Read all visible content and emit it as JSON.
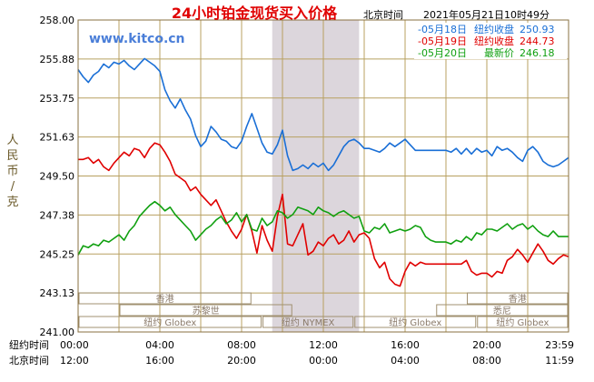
{
  "chart_data": {
    "type": "line",
    "title": "24小时铂金现货买入价格",
    "timestamp_prefix": "北京时间",
    "timestamp": "2021年05月21日10时49分",
    "watermark": "www.kitco.cn",
    "ylabel": "人民币/克",
    "ylim": [
      241.0,
      258.0
    ],
    "y_ticks": [
      "258.00",
      "255.88",
      "253.75",
      "251.63",
      "249.50",
      "247.38",
      "245.25",
      "243.13",
      "241.00"
    ],
    "x_range": [
      0,
      24
    ],
    "x_row_labels": [
      "纽约时间",
      "北京时间"
    ],
    "x_ticks_newyork": [
      "00:00",
      "04:00",
      "08:00",
      "12:00",
      "16:00",
      "20:00",
      "23:59"
    ],
    "x_ticks_beijing": [
      "12:00",
      "16:00",
      "20:00",
      "00:00",
      "04:00",
      "08:00",
      "11:59"
    ],
    "shaded_interval": [
      9.5,
      13.75
    ],
    "sessions": [
      {
        "name": "香港",
        "row": 0,
        "start": 0.0,
        "end": 8.5
      },
      {
        "name": "香港",
        "row": 0,
        "start": 19.0,
        "end": 24.0
      },
      {
        "name": "苏黎世",
        "row": 1,
        "start": 2.0,
        "end": 10.5
      },
      {
        "name": "悉尼",
        "row": 1,
        "start": 17.5,
        "end": 24.0
      },
      {
        "name": "纽约 Globex",
        "row": 2,
        "start": 0.0,
        "end": 9.0
      },
      {
        "name": "纽约 NYMEX",
        "row": 2,
        "start": 9.0,
        "end": 13.5
      },
      {
        "name": "纽约 Globex",
        "row": 2,
        "start": 13.5,
        "end": 19.5
      },
      {
        "name": "纽约 Globex",
        "row": 2,
        "start": 19.5,
        "end": 24.0
      }
    ],
    "legend_position": "top-right",
    "series": [
      {
        "name": "05月18日",
        "close_label": "纽约收盘",
        "close_value": "250.93",
        "color": "#1a6fd6",
        "x": [
          0.0,
          0.25,
          0.5,
          0.75,
          1.0,
          1.25,
          1.5,
          1.75,
          2.0,
          2.25,
          2.5,
          2.75,
          3.0,
          3.25,
          3.5,
          3.75,
          4.0,
          4.25,
          4.5,
          4.75,
          5.0,
          5.25,
          5.5,
          5.75,
          6.0,
          6.25,
          6.5,
          6.75,
          7.0,
          7.25,
          7.5,
          7.75,
          8.0,
          8.25,
          8.5,
          8.75,
          9.0,
          9.25,
          9.5,
          9.75,
          10.0,
          10.25,
          10.5,
          10.75,
          11.0,
          11.25,
          11.5,
          11.75,
          12.0,
          12.25,
          12.5,
          12.75,
          13.0,
          13.25,
          13.5,
          13.75,
          14.0,
          14.25,
          14.5,
          14.75,
          15.0,
          15.25,
          15.5,
          15.75,
          16.0,
          16.25,
          16.5,
          16.75,
          17.0,
          17.25,
          17.5,
          17.75,
          18.0,
          18.25,
          18.5,
          18.75,
          19.0,
          19.25,
          19.5,
          19.75,
          20.0,
          20.25,
          20.5,
          20.75,
          21.0,
          21.25,
          21.5,
          21.75,
          22.0,
          22.25,
          22.5,
          22.75,
          23.0,
          23.25,
          23.5,
          23.75,
          24.0
        ],
        "y": [
          255.3,
          254.9,
          254.6,
          255.0,
          255.2,
          255.6,
          255.4,
          255.7,
          255.6,
          255.8,
          255.5,
          255.3,
          255.6,
          255.9,
          255.7,
          255.5,
          255.2,
          254.2,
          253.6,
          253.2,
          253.7,
          253.1,
          252.6,
          251.7,
          251.1,
          251.4,
          252.2,
          251.9,
          251.5,
          251.4,
          251.1,
          251.0,
          251.4,
          252.2,
          252.9,
          252.1,
          251.3,
          250.8,
          250.7,
          251.2,
          252.0,
          250.6,
          249.8,
          249.9,
          250.1,
          249.9,
          250.2,
          250.0,
          250.2,
          249.8,
          250.1,
          250.6,
          251.1,
          251.4,
          251.5,
          251.3,
          251.0,
          251.0,
          250.9,
          250.8,
          251.0,
          251.3,
          251.1,
          251.3,
          251.5,
          251.2,
          250.9,
          250.9,
          250.9,
          250.9,
          250.9,
          250.9,
          250.9,
          250.8,
          251.0,
          250.7,
          251.0,
          250.7,
          251.0,
          250.8,
          250.9,
          250.6,
          251.1,
          250.9,
          251.0,
          250.8,
          250.5,
          250.3,
          250.9,
          251.1,
          250.8,
          250.3,
          250.1,
          250.0,
          250.1,
          250.3,
          250.5
        ]
      },
      {
        "name": "05月19日",
        "close_label": "纽约收盘",
        "close_value": "244.73",
        "color": "#e00000",
        "x": [
          0.0,
          0.25,
          0.5,
          0.75,
          1.0,
          1.25,
          1.5,
          1.75,
          2.0,
          2.25,
          2.5,
          2.75,
          3.0,
          3.25,
          3.5,
          3.75,
          4.0,
          4.25,
          4.5,
          4.75,
          5.0,
          5.25,
          5.5,
          5.75,
          6.0,
          6.25,
          6.5,
          6.75,
          7.0,
          7.25,
          7.5,
          7.75,
          8.0,
          8.25,
          8.5,
          8.75,
          9.0,
          9.25,
          9.5,
          9.75,
          10.0,
          10.25,
          10.5,
          10.75,
          11.0,
          11.25,
          11.5,
          11.75,
          12.0,
          12.25,
          12.5,
          12.75,
          13.0,
          13.25,
          13.5,
          13.75,
          14.0,
          14.25,
          14.5,
          14.75,
          15.0,
          15.25,
          15.5,
          15.75,
          16.0,
          16.25,
          16.5,
          16.75,
          17.0,
          17.25,
          17.5,
          17.75,
          18.0,
          18.25,
          18.5,
          18.75,
          19.0,
          19.25,
          19.5,
          19.75,
          20.0,
          20.25,
          20.5,
          20.75,
          21.0,
          21.25,
          21.5,
          21.75,
          22.0,
          22.25,
          22.5,
          22.75,
          23.0,
          23.25,
          23.5,
          23.75,
          24.0
        ],
        "y": [
          250.4,
          250.4,
          250.5,
          250.2,
          250.4,
          250.0,
          249.8,
          250.2,
          250.5,
          250.8,
          250.6,
          251.0,
          250.9,
          250.5,
          251.0,
          251.3,
          251.2,
          250.8,
          250.3,
          249.6,
          249.4,
          249.2,
          248.7,
          248.9,
          248.5,
          248.2,
          247.9,
          248.2,
          247.6,
          247.0,
          246.5,
          246.1,
          246.6,
          247.4,
          246.5,
          245.3,
          246.8,
          246.0,
          245.4,
          247.3,
          248.5,
          245.8,
          245.7,
          246.3,
          246.9,
          245.2,
          245.4,
          245.9,
          245.7,
          246.1,
          246.3,
          245.8,
          246.0,
          246.5,
          245.9,
          246.3,
          246.4,
          246.1,
          245.0,
          244.5,
          244.8,
          243.9,
          243.6,
          243.5,
          244.3,
          244.8,
          244.6,
          244.8,
          244.7,
          244.7,
          244.7,
          244.7,
          244.7,
          244.7,
          244.7,
          244.7,
          244.9,
          244.3,
          244.1,
          244.2,
          244.2,
          244.0,
          244.3,
          244.2,
          244.9,
          245.1,
          245.5,
          245.2,
          244.8,
          245.3,
          245.8,
          245.4,
          244.9,
          244.7,
          245.0,
          245.2,
          245.1
        ]
      },
      {
        "name": "05月20日",
        "close_label": "最新价",
        "close_value": "246.18",
        "color": "#10a010",
        "x": [
          0.0,
          0.25,
          0.5,
          0.75,
          1.0,
          1.25,
          1.5,
          1.75,
          2.0,
          2.25,
          2.5,
          2.75,
          3.0,
          3.25,
          3.5,
          3.75,
          4.0,
          4.25,
          4.5,
          4.75,
          5.0,
          5.25,
          5.5,
          5.75,
          6.0,
          6.25,
          6.5,
          6.75,
          7.0,
          7.25,
          7.5,
          7.75,
          8.0,
          8.25,
          8.5,
          8.75,
          9.0,
          9.25,
          9.5,
          9.75,
          10.0,
          10.25,
          10.5,
          10.75,
          11.0,
          11.25,
          11.5,
          11.75,
          12.0,
          12.25,
          12.5,
          12.75,
          13.0,
          13.25,
          13.5,
          13.75,
          14.0,
          14.25,
          14.5,
          14.75,
          15.0,
          15.25,
          15.5,
          15.75,
          16.0,
          16.25,
          16.5,
          16.75,
          17.0,
          17.25,
          17.5,
          17.75,
          18.0,
          18.25,
          18.5,
          18.75,
          19.0,
          19.25,
          19.5,
          19.75,
          20.0,
          20.25,
          20.5,
          20.75,
          21.0,
          21.25,
          21.5,
          21.75,
          22.0,
          22.25,
          22.5,
          22.75,
          23.0,
          23.25,
          23.5,
          23.75,
          24.0
        ],
        "y": [
          245.2,
          245.7,
          245.6,
          245.8,
          245.7,
          246.0,
          245.9,
          246.1,
          246.3,
          246.0,
          246.5,
          246.8,
          247.3,
          247.6,
          247.9,
          248.1,
          247.9,
          247.6,
          247.8,
          247.4,
          247.1,
          246.8,
          246.5,
          246.0,
          246.3,
          246.6,
          246.8,
          247.1,
          247.3,
          246.9,
          247.1,
          247.5,
          247.0,
          247.4,
          246.6,
          246.5,
          247.2,
          246.8,
          247.0,
          247.6,
          247.5,
          247.2,
          247.4,
          247.8,
          247.7,
          247.6,
          247.4,
          247.8,
          247.6,
          247.5,
          247.3,
          247.5,
          247.6,
          247.4,
          247.2,
          247.3,
          246.5,
          246.4,
          246.7,
          246.6,
          246.9,
          246.4,
          246.5,
          246.6,
          246.5,
          246.6,
          246.8,
          246.7,
          246.2,
          246.0,
          245.9,
          245.9,
          245.9,
          245.8,
          246.0,
          245.9,
          246.2,
          246.0,
          246.4,
          246.3,
          246.6,
          246.6,
          246.5,
          246.7,
          246.9,
          246.6,
          246.8,
          246.9,
          246.6,
          246.8,
          246.5,
          246.3,
          246.2,
          246.5,
          246.2,
          246.2,
          246.2
        ]
      }
    ]
  }
}
